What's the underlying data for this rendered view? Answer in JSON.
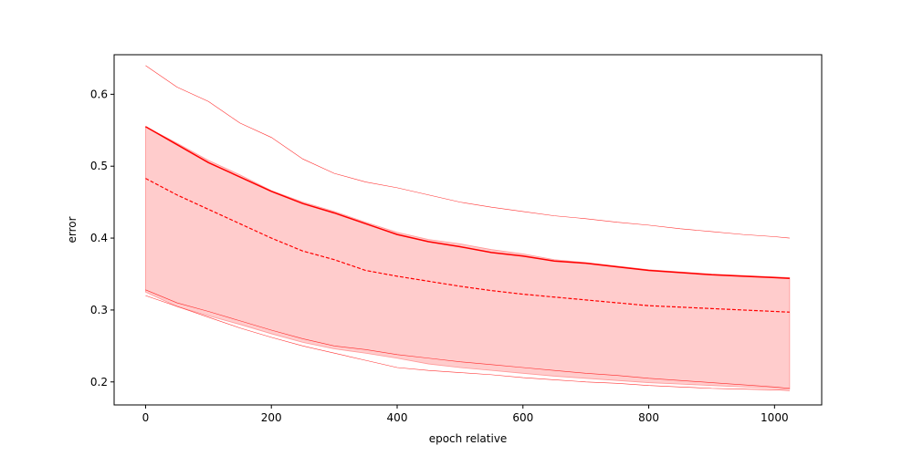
{
  "chart_data": {
    "type": "line",
    "title": "",
    "xlabel": "epoch relative",
    "ylabel": "error",
    "xlim": [
      -50,
      1075
    ],
    "ylim": [
      0.168,
      0.655
    ],
    "xticks": [
      0,
      200,
      400,
      600,
      800,
      1000
    ],
    "yticks": [
      0.2,
      0.3,
      0.4,
      0.5,
      0.6
    ],
    "grid": false,
    "legend": "none",
    "colors": {
      "line": "#ff0000",
      "band": "#ffcccc"
    },
    "x": [
      0,
      50,
      100,
      150,
      200,
      250,
      300,
      350,
      400,
      450,
      500,
      550,
      600,
      650,
      700,
      750,
      800,
      850,
      900,
      950,
      1000,
      1024
    ],
    "series": [
      {
        "style": "solid",
        "role": "mean",
        "values": [
          0.555,
          0.53,
          0.505,
          0.485,
          0.465,
          0.448,
          0.435,
          0.42,
          0.405,
          0.395,
          0.388,
          0.38,
          0.375,
          0.368,
          0.365,
          0.36,
          0.355,
          0.352,
          0.349,
          0.347,
          0.345,
          0.344
        ]
      },
      {
        "style": "dashed",
        "role": "median",
        "values": [
          0.483,
          0.46,
          0.44,
          0.42,
          0.4,
          0.382,
          0.37,
          0.355,
          0.347,
          0.34,
          0.333,
          0.327,
          0.322,
          0.318,
          0.314,
          0.31,
          0.306,
          0.304,
          0.302,
          0.3,
          0.298,
          0.297
        ]
      },
      {
        "style": "thin",
        "role": "upper",
        "values": [
          0.64,
          0.61,
          0.59,
          0.56,
          0.54,
          0.51,
          0.49,
          0.478,
          0.47,
          0.46,
          0.45,
          0.443,
          0.437,
          0.431,
          0.427,
          0.422,
          0.418,
          0.413,
          0.409,
          0.405,
          0.402,
          0.4
        ]
      },
      {
        "style": "thin",
        "role": "lower",
        "values": [
          0.32,
          0.305,
          0.29,
          0.275,
          0.262,
          0.25,
          0.24,
          0.23,
          0.22,
          0.216,
          0.213,
          0.21,
          0.206,
          0.203,
          0.2,
          0.198,
          0.195,
          0.193,
          0.191,
          0.19,
          0.189,
          0.188
        ]
      },
      {
        "style": "thin",
        "role": "lower-alt",
        "values": [
          0.328,
          0.31,
          0.298,
          0.285,
          0.272,
          0.26,
          0.25,
          0.245,
          0.238,
          0.233,
          0.228,
          0.224,
          0.22,
          0.216,
          0.212,
          0.209,
          0.205,
          0.202,
          0.199,
          0.196,
          0.193,
          0.191
        ]
      }
    ],
    "band": {
      "upper": [
        0.555,
        0.532,
        0.508,
        0.488,
        0.466,
        0.45,
        0.437,
        0.422,
        0.408,
        0.398,
        0.392,
        0.384,
        0.378,
        0.37,
        0.366,
        0.361,
        0.356,
        0.353,
        0.35,
        0.348,
        0.346,
        0.345
      ],
      "lower": [
        0.325,
        0.305,
        0.292,
        0.28,
        0.267,
        0.255,
        0.246,
        0.24,
        0.233,
        0.225,
        0.22,
        0.216,
        0.212,
        0.208,
        0.205,
        0.202,
        0.199,
        0.197,
        0.195,
        0.193,
        0.191,
        0.19
      ]
    }
  }
}
